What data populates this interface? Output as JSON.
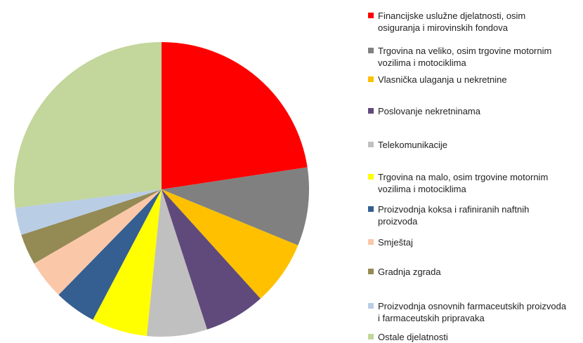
{
  "chart_data": {
    "type": "pie",
    "categories": [
      "Financijske uslužne djelatnosti, osim osiguranja i mirovinskih fondova",
      "Trgovina na veliko, osim trgovine motornim vozilima i motociklima",
      "Vlasnička ulaganja u nekretnine",
      "Poslovanje nekretninama",
      "Telekomunikacije",
      "Trgovina na malo, osim trgovine motornim vozilima i motociklima",
      "Proizvodnja koksa i rafiniranih naftnih proizvoda",
      "Smještaj",
      "Gradnja zgrada",
      "Proizvodnja osnovnih farmaceutskih proizvoda i farmaceutskih pripravaka",
      "Ostale djelatnosti"
    ],
    "values": [
      22.6,
      8.6,
      7.1,
      6.7,
      6.6,
      6.1,
      4.6,
      4.3,
      3.4,
      3.0,
      27.0
    ],
    "colors": [
      "#ff0000",
      "#808080",
      "#ffc000",
      "#604a7b",
      "#c0c0c0",
      "#ffff00",
      "#355e91",
      "#fac8a8",
      "#948a54",
      "#b9cde5",
      "#c3d69b"
    ],
    "legend": "right"
  }
}
